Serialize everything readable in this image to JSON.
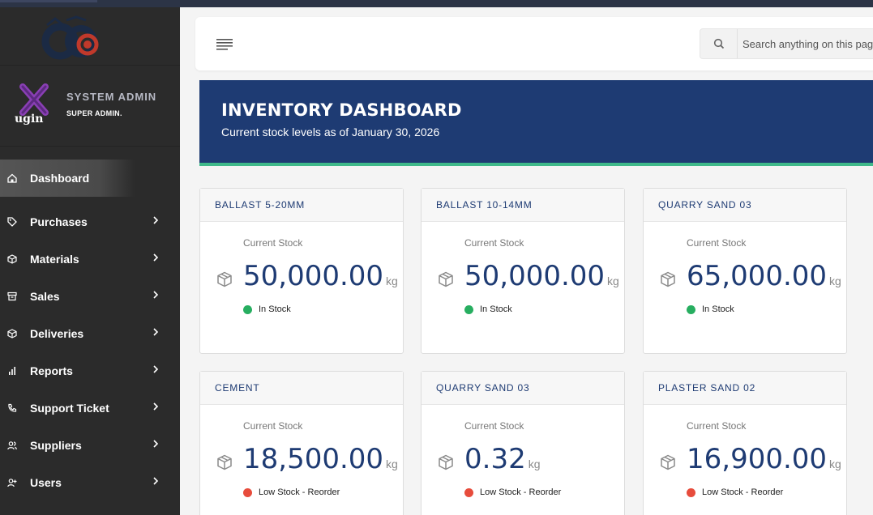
{
  "app": {
    "user_name": "SYSTEM ADMIN",
    "user_role": "SUPER ADMIN."
  },
  "sidebar": {
    "items": [
      {
        "label": "Dashboard",
        "icon": "home-icon",
        "active": true
      },
      {
        "label": "Purchases",
        "icon": "tag-icon"
      },
      {
        "label": "Materials",
        "icon": "box-icon"
      },
      {
        "label": "Sales",
        "icon": "archive-icon"
      },
      {
        "label": "Deliveries",
        "icon": "box-icon"
      },
      {
        "label": "Reports",
        "icon": "bar-chart-icon"
      },
      {
        "label": "Support Ticket",
        "icon": "phone-icon"
      },
      {
        "label": "Suppliers",
        "icon": "users-icon"
      },
      {
        "label": "Users",
        "icon": "user-plus-icon"
      }
    ]
  },
  "header": {
    "search_placeholder": "Search anything on this page"
  },
  "banner": {
    "title": "INVENTORY DASHBOARD",
    "subtitle": "Current stock levels as of January 30, 2026"
  },
  "cards": [
    {
      "name": "BALLAST 5-20MM",
      "label": "Current Stock",
      "value": "50,000.00",
      "unit": "kg",
      "status": "In Stock",
      "status_color": "#27ae60"
    },
    {
      "name": "BALLAST 10-14MM",
      "label": "Current Stock",
      "value": "50,000.00",
      "unit": "kg",
      "status": "In Stock",
      "status_color": "#27ae60"
    },
    {
      "name": "QUARRY SAND 03",
      "label": "Current Stock",
      "value": "65,000.00",
      "unit": "kg",
      "status": "In Stock",
      "status_color": "#27ae60"
    },
    {
      "name": "CEMENT",
      "label": "Current Stock",
      "value": "18,500.00",
      "unit": "kg",
      "status": "Low Stock - Reorder",
      "status_color": "#e74c3c"
    },
    {
      "name": "QUARRY SAND 03",
      "label": "Current Stock",
      "value": "0.32",
      "unit": "kg",
      "status": "Low Stock - Reorder",
      "status_color": "#e74c3c"
    },
    {
      "name": "PLASTER SAND 02",
      "label": "Current Stock",
      "value": "16,900.00",
      "unit": "kg",
      "status": "Low Stock - Reorder",
      "status_color": "#e74c3c"
    }
  ],
  "colors": {
    "brand_navy": "#1e3b73",
    "accent_green": "#3fb98a",
    "sidebar_bg": "#2b2b2b"
  }
}
